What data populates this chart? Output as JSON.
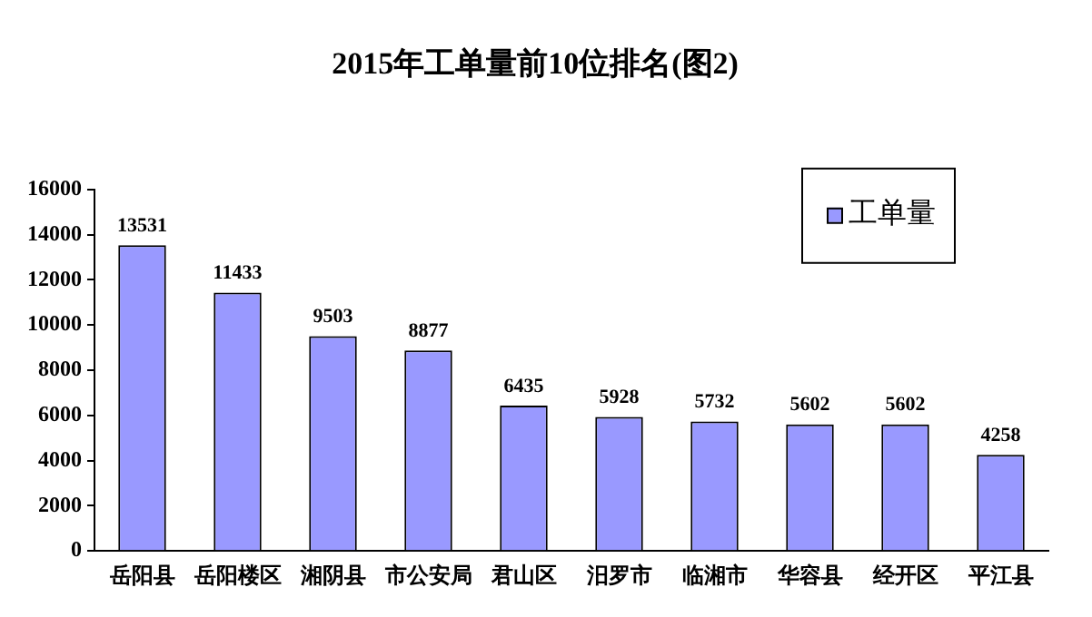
{
  "chart_data": {
    "type": "bar",
    "title": "2015年工单量前10位排名(图2)",
    "categories": [
      "岳阳县",
      "岳阳楼区",
      "湘阴县",
      "市公安局",
      "君山区",
      "汨罗市",
      "临湘市",
      "华容县",
      "经开区",
      "平江县"
    ],
    "series": [
      {
        "name": "工单量",
        "color": "#9999ff",
        "values": [
          13531,
          11433,
          9503,
          8877,
          6435,
          5928,
          5732,
          5602,
          5602,
          4258
        ]
      }
    ],
    "ylim": [
      0,
      16000
    ],
    "yticks": [
      0,
      2000,
      4000,
      6000,
      8000,
      10000,
      12000,
      14000,
      16000
    ],
    "grid": false,
    "legend": "top right",
    "data_labels": true
  }
}
